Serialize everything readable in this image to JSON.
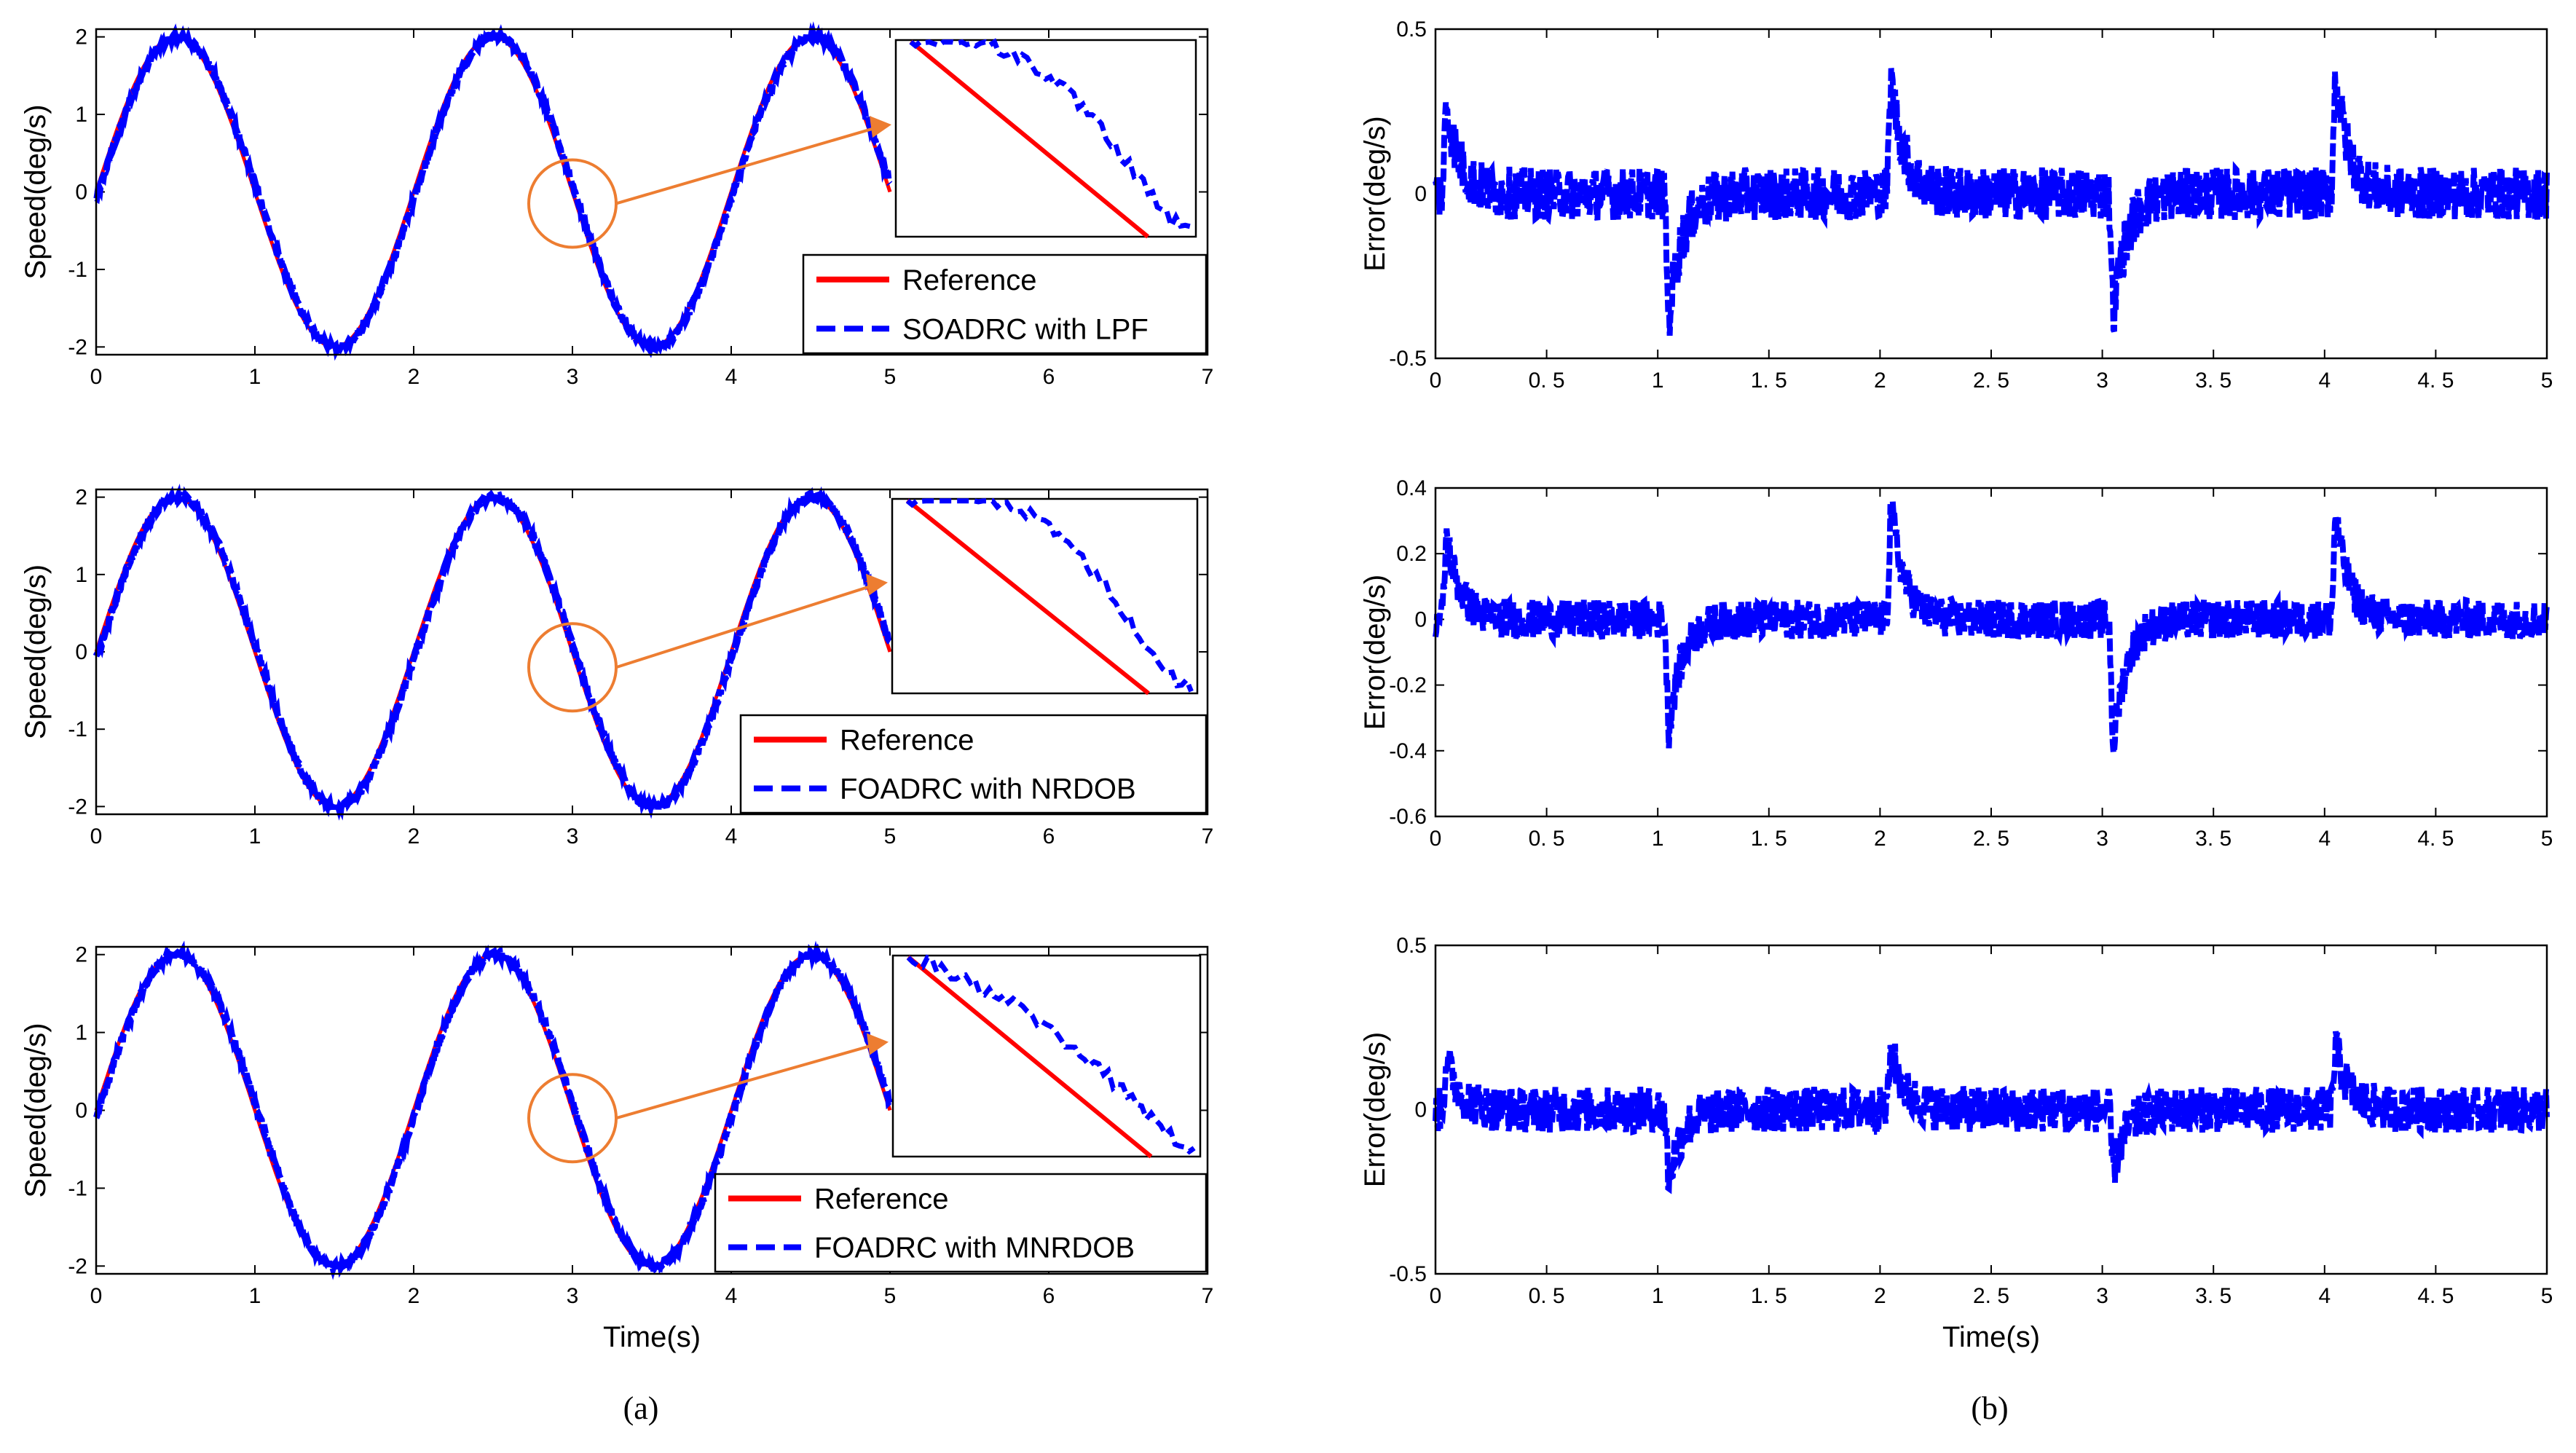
{
  "colors": {
    "reference": "#ff0000",
    "response": "#0000ff",
    "annotation": "#ed7d31",
    "axis": "#000000"
  },
  "captions": {
    "a": "(a)",
    "b": "(b)"
  },
  "chart_data": [
    {
      "id": "a1",
      "type": "line",
      "xlabel": "",
      "ylabel": "Speed(deg/s)",
      "xlim": [
        0,
        7
      ],
      "ylim": [
        -2.1,
        2.1
      ],
      "xticks": [
        0,
        1,
        2,
        3,
        4,
        5,
        6,
        7
      ],
      "yticks": [
        -2,
        -1,
        0,
        1,
        2
      ],
      "series": [
        {
          "name": "Reference",
          "style": "solid",
          "color": "#ff0000",
          "signal": "2*sin(pi*t)",
          "x_range": [
            0,
            5
          ]
        },
        {
          "name": "SOADRC with LPF",
          "style": "dashed",
          "color": "#0000ff",
          "signal": "2*sin(pi*t) + noise",
          "x_range": [
            0,
            5
          ]
        }
      ],
      "zoom": {
        "circle_center": [
          3.0,
          -0.15
        ],
        "inset_x_range": [
          5.0,
          7.0
        ],
        "inset_y_range": [
          -0.5,
          2.1
        ]
      },
      "legend": {
        "position": "bottom-right",
        "entries": [
          "Reference",
          "SOADRC with LPF"
        ]
      }
    },
    {
      "id": "a2",
      "type": "line",
      "xlabel": "",
      "ylabel": "Speed(deg/s)",
      "xlim": [
        0,
        7
      ],
      "ylim": [
        -2.1,
        2.1
      ],
      "xticks": [
        0,
        1,
        2,
        3,
        4,
        5,
        6,
        7
      ],
      "yticks": [
        -2,
        -1,
        0,
        1,
        2
      ],
      "series": [
        {
          "name": "Reference",
          "style": "solid",
          "color": "#ff0000",
          "signal": "2*sin(pi*t)",
          "x_range": [
            0,
            5
          ]
        },
        {
          "name": "FOADRC with NRDOB",
          "style": "dashed",
          "color": "#0000ff",
          "signal": "2*sin(pi*t) + noise",
          "x_range": [
            0,
            5
          ]
        }
      ],
      "zoom": {
        "circle_center": [
          3.0,
          -0.2
        ],
        "inset_x_range": [
          5.0,
          7.0
        ],
        "inset_y_range": [
          -0.6,
          2.1
        ]
      },
      "legend": {
        "position": "bottom-right",
        "entries": [
          "Reference",
          "FOADRC with NRDOB"
        ]
      }
    },
    {
      "id": "a3",
      "type": "line",
      "xlabel": "Time(s)",
      "ylabel": "Speed(deg/s)",
      "xlim": [
        0,
        7
      ],
      "ylim": [
        -2.1,
        2.1
      ],
      "xticks": [
        0,
        1,
        2,
        3,
        4,
        5,
        6,
        7
      ],
      "yticks": [
        -2,
        -1,
        0,
        1,
        2
      ],
      "series": [
        {
          "name": "Reference",
          "style": "solid",
          "color": "#ff0000",
          "signal": "2*sin(pi*t)",
          "x_range": [
            0,
            5
          ]
        },
        {
          "name": "FOADRC with MNRDOB",
          "style": "dashed",
          "color": "#0000ff",
          "signal": "2*sin(pi*t) + noise",
          "x_range": [
            0,
            5
          ]
        }
      ],
      "zoom": {
        "circle_center": [
          3.0,
          -0.1
        ],
        "inset_x_range": [
          5.0,
          7.0
        ],
        "inset_y_range": [
          -0.7,
          2.1
        ]
      },
      "legend": {
        "position": "bottom-right",
        "entries": [
          "Reference",
          "FOADRC with MNRDOB"
        ]
      }
    },
    {
      "id": "b1",
      "type": "line",
      "xlabel": "",
      "ylabel": "Error(deg/s)",
      "xlim": [
        0,
        5
      ],
      "ylim": [
        -0.5,
        0.5
      ],
      "xticks": [
        0,
        0.5,
        1,
        1.5,
        2,
        2.5,
        3,
        3.5,
        4,
        4.5,
        5
      ],
      "xtick_labels": [
        "0",
        "0. 5",
        "1",
        "1. 5",
        "2",
        "2. 5",
        "3",
        "3. 5",
        "4",
        "4. 5",
        "5"
      ],
      "yticks": [
        -0.5,
        0,
        0.5
      ],
      "ytick_labels": [
        "-0.5",
        "0",
        "0.5"
      ],
      "series": [
        {
          "name": "Error",
          "style": "dashed",
          "color": "#0000ff",
          "noise_amplitude": 0.08,
          "spikes": [
            [
              0.05,
              0.3
            ],
            [
              1.05,
              -0.42
            ],
            [
              2.05,
              0.38
            ],
            [
              3.05,
              -0.4
            ],
            [
              4.05,
              0.4
            ]
          ]
        }
      ]
    },
    {
      "id": "b2",
      "type": "line",
      "xlabel": "",
      "ylabel": "Error(deg/s)",
      "xlim": [
        0,
        5
      ],
      "ylim": [
        -0.6,
        0.4
      ],
      "xticks": [
        0,
        0.5,
        1,
        1.5,
        2,
        2.5,
        3,
        3.5,
        4,
        4.5,
        5
      ],
      "xtick_labels": [
        "0",
        "0. 5",
        "1",
        "1. 5",
        "2",
        "2. 5",
        "3",
        "3. 5",
        "4",
        "4. 5",
        "5"
      ],
      "yticks": [
        -0.6,
        -0.4,
        -0.2,
        0,
        0.2,
        0.4
      ],
      "ytick_labels": [
        "-0.6",
        "-0.4",
        "-0.2",
        "0",
        "0.2",
        "0.4"
      ],
      "series": [
        {
          "name": "Error",
          "style": "dashed",
          "color": "#0000ff",
          "noise_amplitude": 0.06,
          "spikes": [
            [
              0.05,
              0.28
            ],
            [
              1.05,
              -0.37
            ],
            [
              2.05,
              0.38
            ],
            [
              3.05,
              -0.43
            ],
            [
              4.05,
              0.35
            ]
          ]
        }
      ]
    },
    {
      "id": "b3",
      "type": "line",
      "xlabel": "Time(s)",
      "ylabel": "Error(deg/s)",
      "xlim": [
        0,
        5
      ],
      "ylim": [
        -0.5,
        0.5
      ],
      "xticks": [
        0,
        0.5,
        1,
        1.5,
        2,
        2.5,
        3,
        3.5,
        4,
        4.5,
        5
      ],
      "xtick_labels": [
        "0",
        "0. 5",
        "1",
        "1. 5",
        "2",
        "2. 5",
        "3",
        "3. 5",
        "4",
        "4. 5",
        "5"
      ],
      "yticks": [
        -0.5,
        0,
        0.5
      ],
      "ytick_labels": [
        "-0.5",
        "0",
        "0.5"
      ],
      "series": [
        {
          "name": "Error",
          "style": "dashed",
          "color": "#0000ff",
          "noise_amplitude": 0.07,
          "spikes": [
            [
              0.05,
              0.17
            ],
            [
              1.05,
              -0.23
            ],
            [
              2.05,
              0.2
            ],
            [
              3.05,
              -0.2
            ],
            [
              4.05,
              0.21
            ]
          ]
        }
      ]
    }
  ]
}
